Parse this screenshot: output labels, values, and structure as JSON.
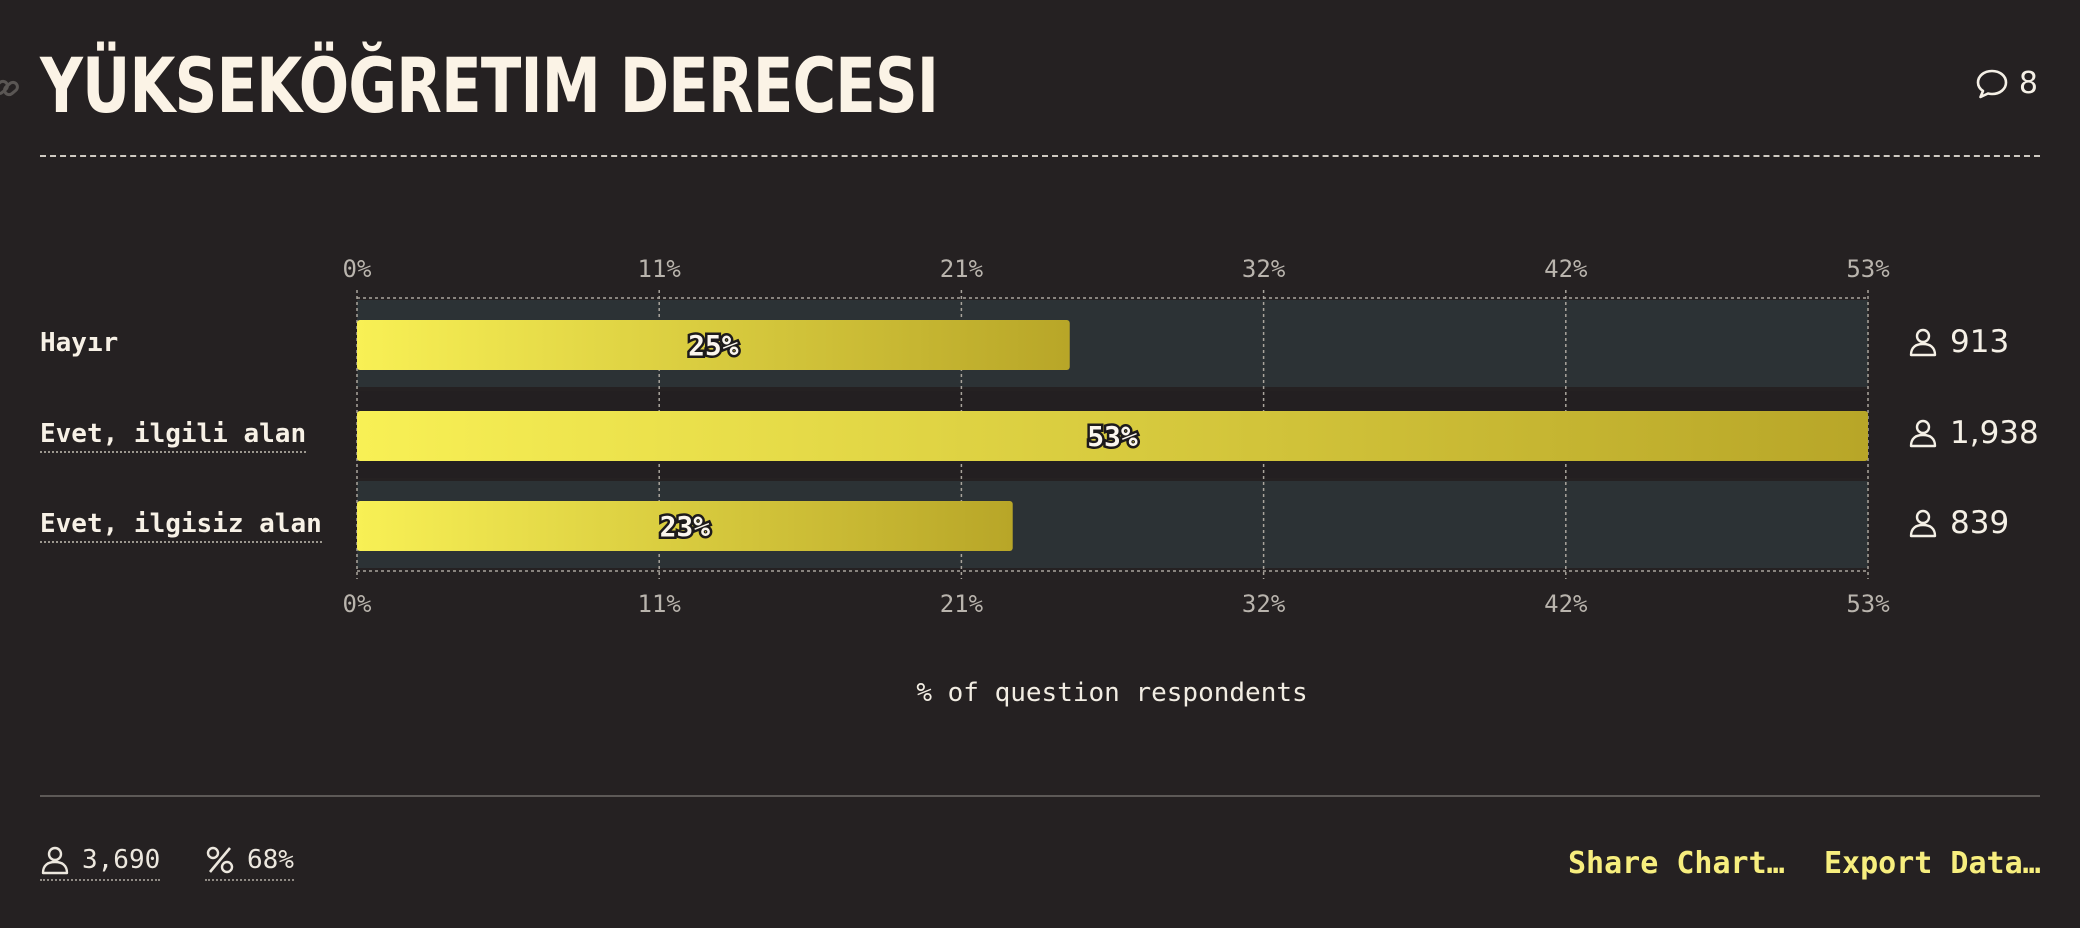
{
  "header": {
    "title": "YÜKSEKÖĞRETIM DERECESI",
    "comment_count": "8"
  },
  "chart_data": {
    "type": "bar",
    "orientation": "horizontal",
    "categories": [
      "Hayır",
      "Evet, ilgili alan",
      "Evet, ilgisiz alan"
    ],
    "values": [
      25,
      53,
      23
    ],
    "value_labels": [
      "25%",
      "53%",
      "23%"
    ],
    "counts": [
      "913",
      "1,938",
      "839"
    ],
    "xticks": [
      "0%",
      "11%",
      "21%",
      "32%",
      "42%",
      "53%"
    ],
    "xlim": [
      0,
      53
    ],
    "xlabel": "% of question respondents",
    "grid": true,
    "bar_gradient": [
      "#f8f055",
      "#b8a628"
    ]
  },
  "footer": {
    "respondents": "3,690",
    "percentage": "68%",
    "share_label": "Share Chart…",
    "export_label": "Export Data…"
  }
}
